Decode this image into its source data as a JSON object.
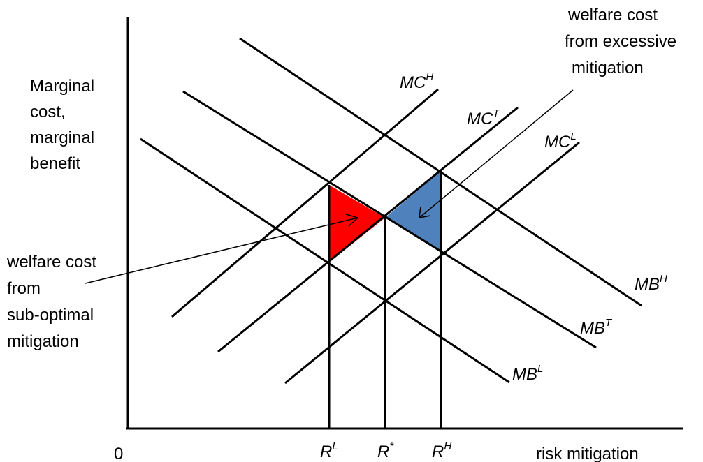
{
  "axes": {
    "origin_label": "0",
    "x_label": "risk mitigation",
    "y_label_lines": [
      "Marginal",
      "cost,",
      "marginal",
      "benefit"
    ]
  },
  "curves": {
    "mc_h": {
      "base": "MC",
      "sup": "H"
    },
    "mc_t": {
      "base": "MC",
      "sup": "T"
    },
    "mc_l": {
      "base": "MC",
      "sup": "L"
    },
    "mb_h": {
      "base": "MB",
      "sup": "H"
    },
    "mb_t": {
      "base": "MB",
      "sup": "T"
    },
    "mb_l": {
      "base": "MB",
      "sup": "L"
    }
  },
  "ticks": {
    "r_l": {
      "base": "R",
      "sup": "L"
    },
    "r_star": {
      "base": "R",
      "sup": "*"
    },
    "r_h": {
      "base": "R",
      "sup": "H"
    }
  },
  "annotations": {
    "excessive_lines": [
      "welfare cost",
      "from excessive",
      "mitigation"
    ],
    "suboptimal_lines": [
      "welfare cost",
      "from",
      "sub-optimal",
      "mitigation"
    ]
  },
  "colors": {
    "suboptimal_fill": "#ff0000",
    "excessive_fill": "#4f81bd",
    "line": "#000000"
  }
}
